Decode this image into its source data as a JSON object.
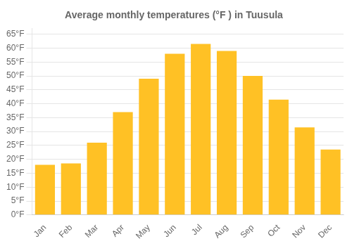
{
  "chart_data": {
    "type": "bar",
    "title": "Average monthly temperatures (°F ) in Tuusula",
    "categories": [
      "Jan",
      "Feb",
      "Mar",
      "Apr",
      "May",
      "Jun",
      "Jul",
      "Aug",
      "Sep",
      "Oct",
      "Nov",
      "Dec"
    ],
    "values": [
      18,
      18.5,
      26,
      37,
      49,
      58,
      61.5,
      59,
      50,
      41.5,
      31.5,
      23.5
    ],
    "color": "#FFC125",
    "ylim": [
      0,
      67
    ],
    "yticks": [
      {
        "value": 0,
        "label": "0°F"
      },
      {
        "value": 5,
        "label": "5°F"
      },
      {
        "value": 10,
        "label": "10°F"
      },
      {
        "value": 15,
        "label": "15°F"
      },
      {
        "value": 20,
        "label": "20°F"
      },
      {
        "value": 25,
        "label": "25°F"
      },
      {
        "value": 30,
        "label": "30°F"
      },
      {
        "value": 35,
        "label": "35°F"
      },
      {
        "value": 40,
        "label": "40°F"
      },
      {
        "value": 45,
        "label": "45°F"
      },
      {
        "value": 50,
        "label": "50°F"
      },
      {
        "value": 55,
        "label": "55°F"
      },
      {
        "value": 60,
        "label": "60°F"
      },
      {
        "value": 65,
        "label": "65°F"
      }
    ],
    "grid": true
  }
}
